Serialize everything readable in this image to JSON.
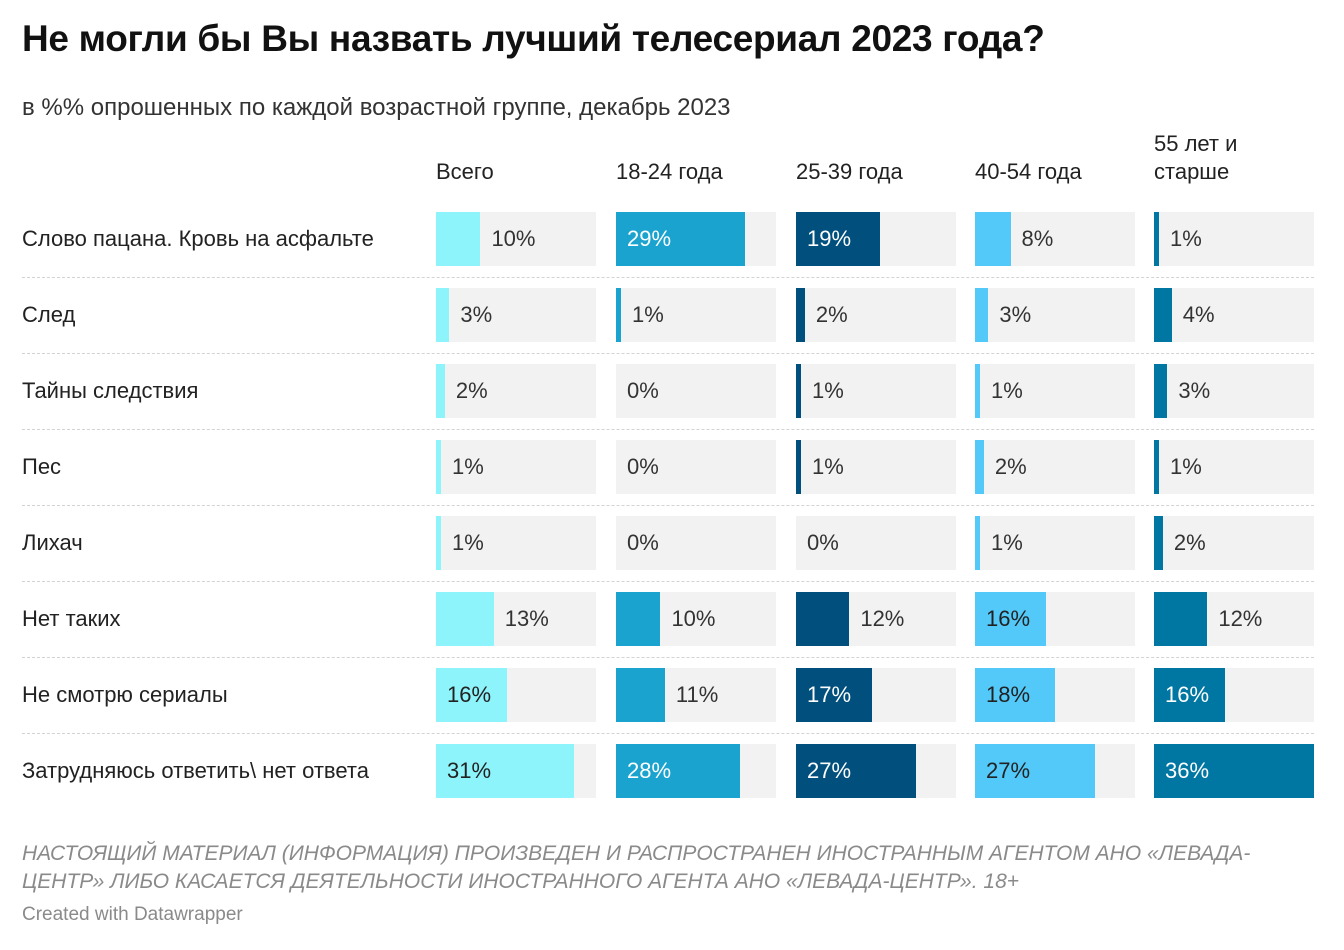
{
  "title": "Не могли бы Вы назвать лучший телесериал 2023 года?",
  "subtitle": "в %% опрошенных по каждой возрастной группе, декабрь 2023",
  "footer": "Настоящий материал (информация) произведен и распространен иностранным агентом АНО «Левада-Центр» либо касается деятельности иностранного агента АНО «Левада-Центр». 18+",
  "credit": "Created with Datawrapper",
  "chart_data": {
    "type": "bar",
    "unit": "%",
    "xlim": [
      0,
      36
    ],
    "categories": [
      "Слово пацана. Кровь на асфальте",
      "След",
      "Тайны следствия",
      "Пес",
      "Лихач",
      "Нет таких",
      "Не смотрю сериалы",
      "Затрудняюсь ответить\\ нет ответа"
    ],
    "series": [
      {
        "name": "Всего",
        "color": "#8df4fb",
        "dark": false,
        "values": [
          10,
          3,
          2,
          1,
          1,
          13,
          16,
          31
        ]
      },
      {
        "name": "18-24 года",
        "color": "#1aa3cf",
        "dark": true,
        "values": [
          29,
          1,
          0,
          0,
          0,
          10,
          11,
          28
        ]
      },
      {
        "name": "25-39 года",
        "color": "#004f7c",
        "dark": true,
        "values": [
          19,
          2,
          1,
          1,
          0,
          12,
          17,
          27
        ]
      },
      {
        "name": "40-54 года",
        "color": "#52c9f8",
        "dark": false,
        "values": [
          8,
          3,
          1,
          2,
          1,
          16,
          18,
          27
        ]
      },
      {
        "name": "55 лет и старше",
        "color": "#0077a3",
        "dark": true,
        "values": [
          1,
          4,
          3,
          1,
          2,
          12,
          16,
          36
        ]
      }
    ]
  }
}
